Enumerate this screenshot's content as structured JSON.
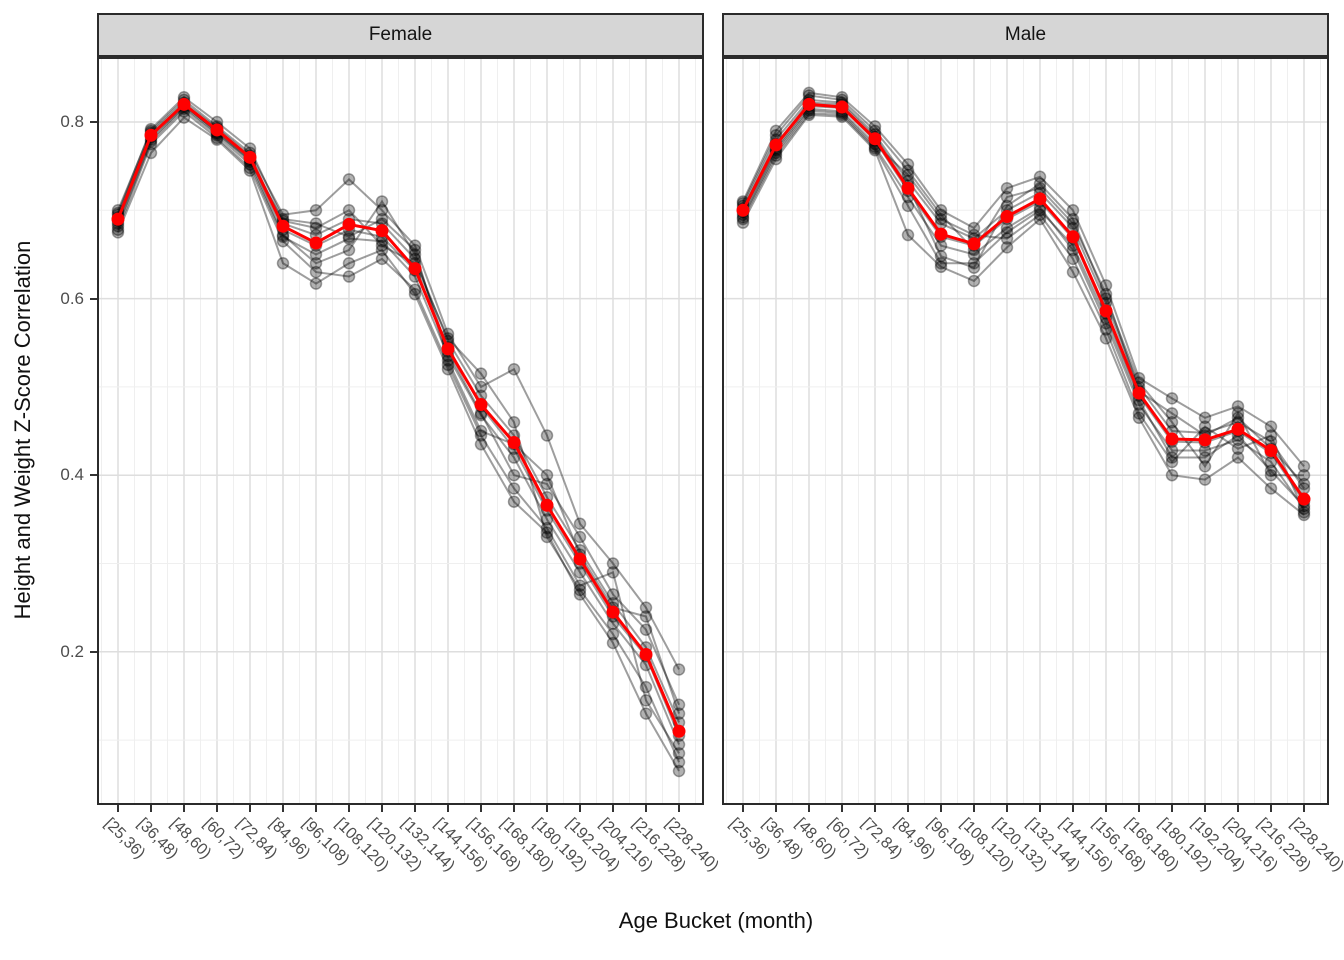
{
  "chart_data": {
    "type": "line",
    "title": "",
    "xlabel": "Age Bucket (month)",
    "ylabel": "Height and Weight Z-Score Correlation",
    "legend_position": "none",
    "grid": "major and minor, light gray on white (theme_bw facet plot)",
    "ylim": [
      0.027,
      0.873
    ],
    "y_ticks": [
      {
        "label": "0.8",
        "value": 0.8
      },
      {
        "label": "0.6",
        "value": 0.6
      },
      {
        "label": "0.4",
        "value": 0.4
      },
      {
        "label": "0.2",
        "value": 0.2
      }
    ],
    "y_minor_ticks": [
      0.1,
      0.3,
      0.5,
      0.7
    ],
    "categories": [
      "[25,36)",
      "[36,48)",
      "[48,60)",
      "[60,72)",
      "[72,84)",
      "[84,96)",
      "[96,108)",
      "[108,120)",
      "[120,132)",
      "[132,144)",
      "[144,156)",
      "[156,168)",
      "[168,180)",
      "[180,192)",
      "[192,204)",
      "[204,216)",
      "[216,228)",
      "[228,240)"
    ],
    "colors": {
      "mean_line": "#FF0000",
      "member_line": "rgba(0,0,0,0.38)",
      "member_point_fill": "rgba(0,0,0,0.30)",
      "member_point_stroke": "rgba(0,0,0,0.35)",
      "strip_bg": "#D6D6D6",
      "panel_border": "#2B2B2B",
      "grid_major": "#DEDEDE",
      "grid_minor": "#EFEFEF",
      "axis_text": "#4D4D4D",
      "title_text": "#111111"
    },
    "facets": [
      {
        "label": "Female",
        "mean_series": {
          "name": "mean",
          "values": [
            0.69,
            0.785,
            0.82,
            0.791,
            0.76,
            0.682,
            0.663,
            0.684,
            0.677,
            0.634,
            0.543,
            0.48,
            0.437,
            0.366,
            0.305,
            0.245,
            0.197,
            0.11
          ]
        },
        "member_series": [
          {
            "name": "series-1",
            "values": [
              0.7,
              0.79,
              0.825,
              0.795,
              0.765,
              0.695,
              0.7,
              0.735,
              0.7,
              0.66,
              0.56,
              0.5,
              0.52,
              0.445,
              0.345,
              0.3,
              0.25,
              0.18
            ]
          },
          {
            "name": "series-2",
            "values": [
              0.675,
              0.765,
              0.805,
              0.78,
              0.745,
              0.64,
              0.617,
              0.64,
              0.655,
              0.605,
              0.52,
              0.435,
              0.37,
              0.335,
              0.265,
              0.21,
              0.13,
              0.065
            ]
          },
          {
            "name": "series-3",
            "values": [
              0.688,
              0.783,
              0.818,
              0.79,
              0.758,
              0.678,
              0.66,
              0.678,
              0.67,
              0.632,
              0.545,
              0.478,
              0.43,
              0.36,
              0.3,
              0.24,
              0.195,
              0.105
            ]
          },
          {
            "name": "series-4",
            "values": [
              0.695,
              0.788,
              0.822,
              0.793,
              0.762,
              0.685,
              0.672,
              0.69,
              0.685,
              0.645,
              0.552,
              0.49,
              0.445,
              0.375,
              0.315,
              0.255,
              0.205,
              0.12
            ]
          },
          {
            "name": "series-5",
            "values": [
              0.682,
              0.778,
              0.815,
              0.785,
              0.752,
              0.67,
              0.65,
              0.668,
              0.665,
              0.625,
              0.535,
              0.468,
              0.42,
              0.35,
              0.29,
              0.232,
              0.185,
              0.095
            ]
          },
          {
            "name": "series-6",
            "values": [
              0.692,
              0.786,
              0.82,
              0.788,
              0.755,
              0.672,
              0.64,
              0.655,
              0.71,
              0.65,
              0.54,
              0.47,
              0.4,
              0.39,
              0.33,
              0.265,
              0.225,
              0.14
            ]
          },
          {
            "name": "series-7",
            "values": [
              0.685,
              0.78,
              0.817,
              0.787,
              0.757,
              0.688,
              0.68,
              0.7,
              0.66,
              0.64,
              0.555,
              0.515,
              0.46,
              0.33,
              0.27,
              0.22,
              0.16,
              0.075
            ]
          },
          {
            "name": "series-8",
            "values": [
              0.697,
              0.792,
              0.828,
              0.8,
              0.77,
              0.69,
              0.685,
              0.67,
              0.69,
              0.655,
              0.53,
              0.45,
              0.435,
              0.4,
              0.31,
              0.25,
              0.24,
              0.13
            ]
          },
          {
            "name": "series-9",
            "values": [
              0.678,
              0.775,
              0.812,
              0.782,
              0.748,
              0.665,
              0.63,
              0.625,
              0.645,
              0.61,
              0.525,
              0.445,
              0.385,
              0.34,
              0.275,
              0.29,
              0.145,
              0.085
            ]
          }
        ]
      },
      {
        "label": "Male",
        "mean_series": {
          "name": "mean",
          "values": [
            0.7,
            0.774,
            0.82,
            0.817,
            0.781,
            0.725,
            0.673,
            0.662,
            0.693,
            0.713,
            0.67,
            0.586,
            0.493,
            0.441,
            0.44,
            0.452,
            0.428,
            0.373
          ]
        },
        "member_series": [
          {
            "name": "series-1",
            "values": [
              0.71,
              0.79,
              0.833,
              0.828,
              0.795,
              0.752,
              0.7,
              0.68,
              0.725,
              0.738,
              0.7,
              0.615,
              0.51,
              0.487,
              0.465,
              0.478,
              0.455,
              0.41
            ]
          },
          {
            "name": "series-2",
            "values": [
              0.686,
              0.758,
              0.808,
              0.806,
              0.768,
              0.672,
              0.636,
              0.62,
              0.658,
              0.69,
              0.63,
              0.555,
              0.465,
              0.4,
              0.395,
              0.42,
              0.385,
              0.355
            ]
          },
          {
            "name": "series-3",
            "values": [
              0.698,
              0.77,
              0.818,
              0.816,
              0.779,
              0.722,
              0.67,
              0.66,
              0.69,
              0.71,
              0.668,
              0.583,
              0.49,
              0.438,
              0.437,
              0.45,
              0.425,
              0.37
            ]
          },
          {
            "name": "series-4",
            "values": [
              0.705,
              0.78,
              0.825,
              0.822,
              0.786,
              0.733,
              0.685,
              0.668,
              0.7,
              0.72,
              0.68,
              0.595,
              0.5,
              0.45,
              0.448,
              0.46,
              0.438,
              0.385
            ]
          },
          {
            "name": "series-5",
            "values": [
              0.692,
              0.765,
              0.813,
              0.81,
              0.772,
              0.715,
              0.66,
              0.65,
              0.68,
              0.703,
              0.655,
              0.572,
              0.48,
              0.428,
              0.428,
              0.44,
              0.415,
              0.362
            ]
          },
          {
            "name": "series-6",
            "values": [
              0.702,
              0.775,
              0.822,
              0.82,
              0.783,
              0.728,
              0.648,
              0.635,
              0.705,
              0.73,
              0.69,
              0.6,
              0.505,
              0.46,
              0.41,
              0.47,
              0.4,
              0.4
            ]
          },
          {
            "name": "series-7",
            "values": [
              0.695,
              0.768,
              0.815,
              0.812,
              0.775,
              0.74,
              0.69,
              0.672,
              0.668,
              0.695,
              0.645,
              0.565,
              0.47,
              0.415,
              0.455,
              0.43,
              0.445,
              0.358
            ]
          },
          {
            "name": "series-8",
            "values": [
              0.708,
              0.785,
              0.83,
              0.825,
              0.79,
              0.745,
              0.695,
              0.655,
              0.715,
              0.725,
              0.685,
              0.605,
              0.495,
              0.47,
              0.445,
              0.465,
              0.43,
              0.39
            ]
          },
          {
            "name": "series-9",
            "values": [
              0.69,
              0.762,
              0.81,
              0.808,
              0.77,
              0.705,
              0.64,
              0.64,
              0.675,
              0.7,
              0.66,
              0.578,
              0.485,
              0.42,
              0.42,
              0.445,
              0.405,
              0.365
            ]
          }
        ]
      }
    ]
  }
}
